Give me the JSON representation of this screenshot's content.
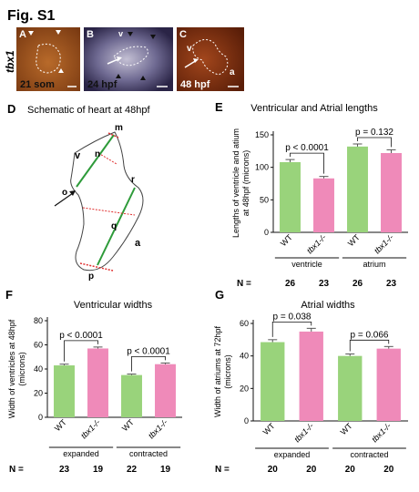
{
  "figure_title": "Fig. S1",
  "panels": {
    "A": {
      "letter": "A",
      "stage": "21 som",
      "gene": "tbx1"
    },
    "B": {
      "letter": "B",
      "stage": "24 hpf",
      "marker": "v"
    },
    "C": {
      "letter": "C",
      "stage": "48 hpf",
      "label_v": "v",
      "label_a": "a"
    },
    "D": {
      "letter": "D",
      "title": "Schematic of heart at 48hpf",
      "labels": {
        "m": "m",
        "n": "n",
        "o": "o",
        "p": "p",
        "q": "q",
        "r": "r",
        "v": "v",
        "a": "a"
      }
    },
    "E": {
      "letter": "E"
    },
    "F": {
      "letter": "F"
    },
    "G": {
      "letter": "G"
    }
  },
  "chart_data": [
    {
      "id": "E",
      "type": "bar",
      "title": "Ventricular and Atrial lengths",
      "ylabel": "Lengths of ventricle and atium at 48hpf (microns)",
      "ylabel_lines": [
        "Lengths of ventricle and atium",
        "at 48hpf (microns)"
      ],
      "ylim": [
        0,
        150
      ],
      "yticks": [
        0,
        50,
        100,
        150
      ],
      "categories": [
        "WT",
        "tbx1-/-",
        "WT",
        "tbx1-/-"
      ],
      "values": [
        108,
        83,
        132,
        122
      ],
      "errors": [
        4,
        3,
        4,
        5
      ],
      "colors": [
        "#99d37b",
        "#ef8ab9",
        "#99d37b",
        "#ef8ab9"
      ],
      "groups": [
        {
          "label": "ventricle",
          "from": 0,
          "to": 1
        },
        {
          "label": "atrium",
          "from": 2,
          "to": 3
        }
      ],
      "comparisons": [
        {
          "text": "p < 0.0001",
          "from": 0,
          "to": 1
        },
        {
          "text": "p = 0.132",
          "from": 2,
          "to": 3
        }
      ],
      "n_label": "N =",
      "n_values": [
        26,
        23,
        26,
        23
      ]
    },
    {
      "id": "F",
      "type": "bar",
      "title": "Ventricular widths",
      "ylabel": "Width of ventricles at 48hpf (microns)",
      "ylabel_lines": [
        "Width of ventricles at 48hpf",
        "(microns)"
      ],
      "ylim": [
        0,
        80
      ],
      "yticks": [
        0,
        20,
        40,
        60,
        80
      ],
      "categories": [
        "WT",
        "tbx1-/-",
        "WT",
        "tbx1-/-"
      ],
      "values": [
        43,
        57,
        35,
        44
      ],
      "errors": [
        1,
        1.2,
        0.8,
        1
      ],
      "colors": [
        "#99d37b",
        "#ef8ab9",
        "#99d37b",
        "#ef8ab9"
      ],
      "groups": [
        {
          "label": "expanded",
          "from": 0,
          "to": 1
        },
        {
          "label": "contracted",
          "from": 2,
          "to": 3
        }
      ],
      "comparisons": [
        {
          "text": "p < 0.0001",
          "from": 0,
          "to": 1
        },
        {
          "text": "p < 0.0001",
          "from": 2,
          "to": 3
        }
      ],
      "n_label": "N =",
      "n_values": [
        23,
        19,
        22,
        19
      ]
    },
    {
      "id": "G",
      "type": "bar",
      "title": "Atrial widths",
      "ylabel": "Width of atriums at 72hpf (microns)",
      "ylabel_lines": [
        "Width of atriums at 72hpf",
        "(microns)"
      ],
      "ylim": [
        0,
        60
      ],
      "yticks": [
        0,
        20,
        40,
        60
      ],
      "categories": [
        "WT",
        "tbx1-/-",
        "WT",
        "tbx1-/-"
      ],
      "values": [
        48.5,
        55,
        40,
        44.5
      ],
      "errors": [
        1.5,
        2,
        1.2,
        1.3
      ],
      "colors": [
        "#99d37b",
        "#ef8ab9",
        "#99d37b",
        "#ef8ab9"
      ],
      "groups": [
        {
          "label": "expanded",
          "from": 0,
          "to": 1
        },
        {
          "label": "contracted",
          "from": 2,
          "to": 3
        }
      ],
      "comparisons": [
        {
          "text": "p = 0.038",
          "from": 0,
          "to": 1
        },
        {
          "text": "p = 0.066",
          "from": 2,
          "to": 3
        }
      ],
      "n_label": "N =",
      "n_values": [
        20,
        20,
        20,
        20
      ]
    }
  ]
}
